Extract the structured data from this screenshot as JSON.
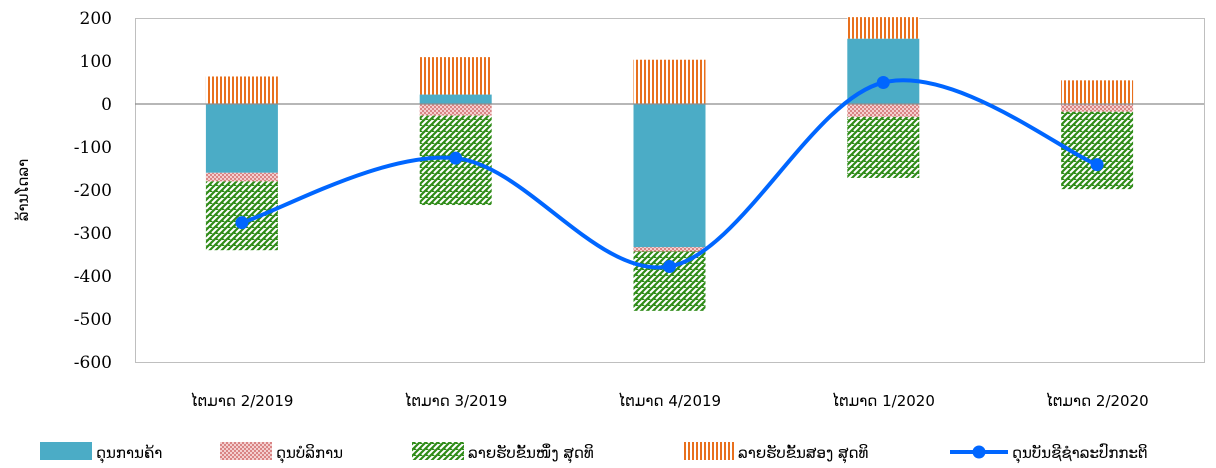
{
  "chart_data": {
    "type": "bar",
    "stacked": true,
    "ylabel": "ລ້ານໂດລາ",
    "ylim": [
      -600,
      200
    ],
    "yticks": [
      200,
      100,
      0,
      -100,
      -200,
      -300,
      -400,
      -500,
      -600
    ],
    "grid": false,
    "legend_position": "bottom",
    "categories": [
      "ໄຕມາດ 2/2019",
      "ໄຕມາດ 3/2019",
      "ໄຕມາດ 4/2019",
      "ໄຕມາດ 1/2020",
      "ໄຕມາດ 2/2020"
    ],
    "series": [
      {
        "name": "ດຸນການຄ້າ",
        "kind": "bar",
        "color": "#4bacc6",
        "pattern": "solid",
        "values": [
          -160,
          22,
          -333,
          152,
          0
        ]
      },
      {
        "name": "ດຸນບໍລິການ",
        "kind": "bar",
        "color": "#e6a0a0",
        "pattern": "dots",
        "values": [
          -20,
          -27,
          -10,
          -30,
          -18
        ]
      },
      {
        "name": "ລາຍຮັບຂັ້ນໜຶ່ງ ສຸດທິ",
        "kind": "bar",
        "color": "#3f9b1f",
        "pattern": "zigzag",
        "values": [
          -160,
          -208,
          -138,
          -142,
          -180
        ]
      },
      {
        "name": "ລາຍຮັບຂັ້ນສອງ ສຸດທິ",
        "kind": "bar",
        "color": "#e8701d",
        "pattern": "vlines",
        "values": [
          64,
          87,
          103,
          50,
          55
        ]
      },
      {
        "name": "ດຸນບັນຊີຊຳລະປົກກະຕິ",
        "kind": "line",
        "color": "#0066ff",
        "values": [
          -276,
          -126,
          -378,
          50,
          -141
        ]
      }
    ]
  }
}
